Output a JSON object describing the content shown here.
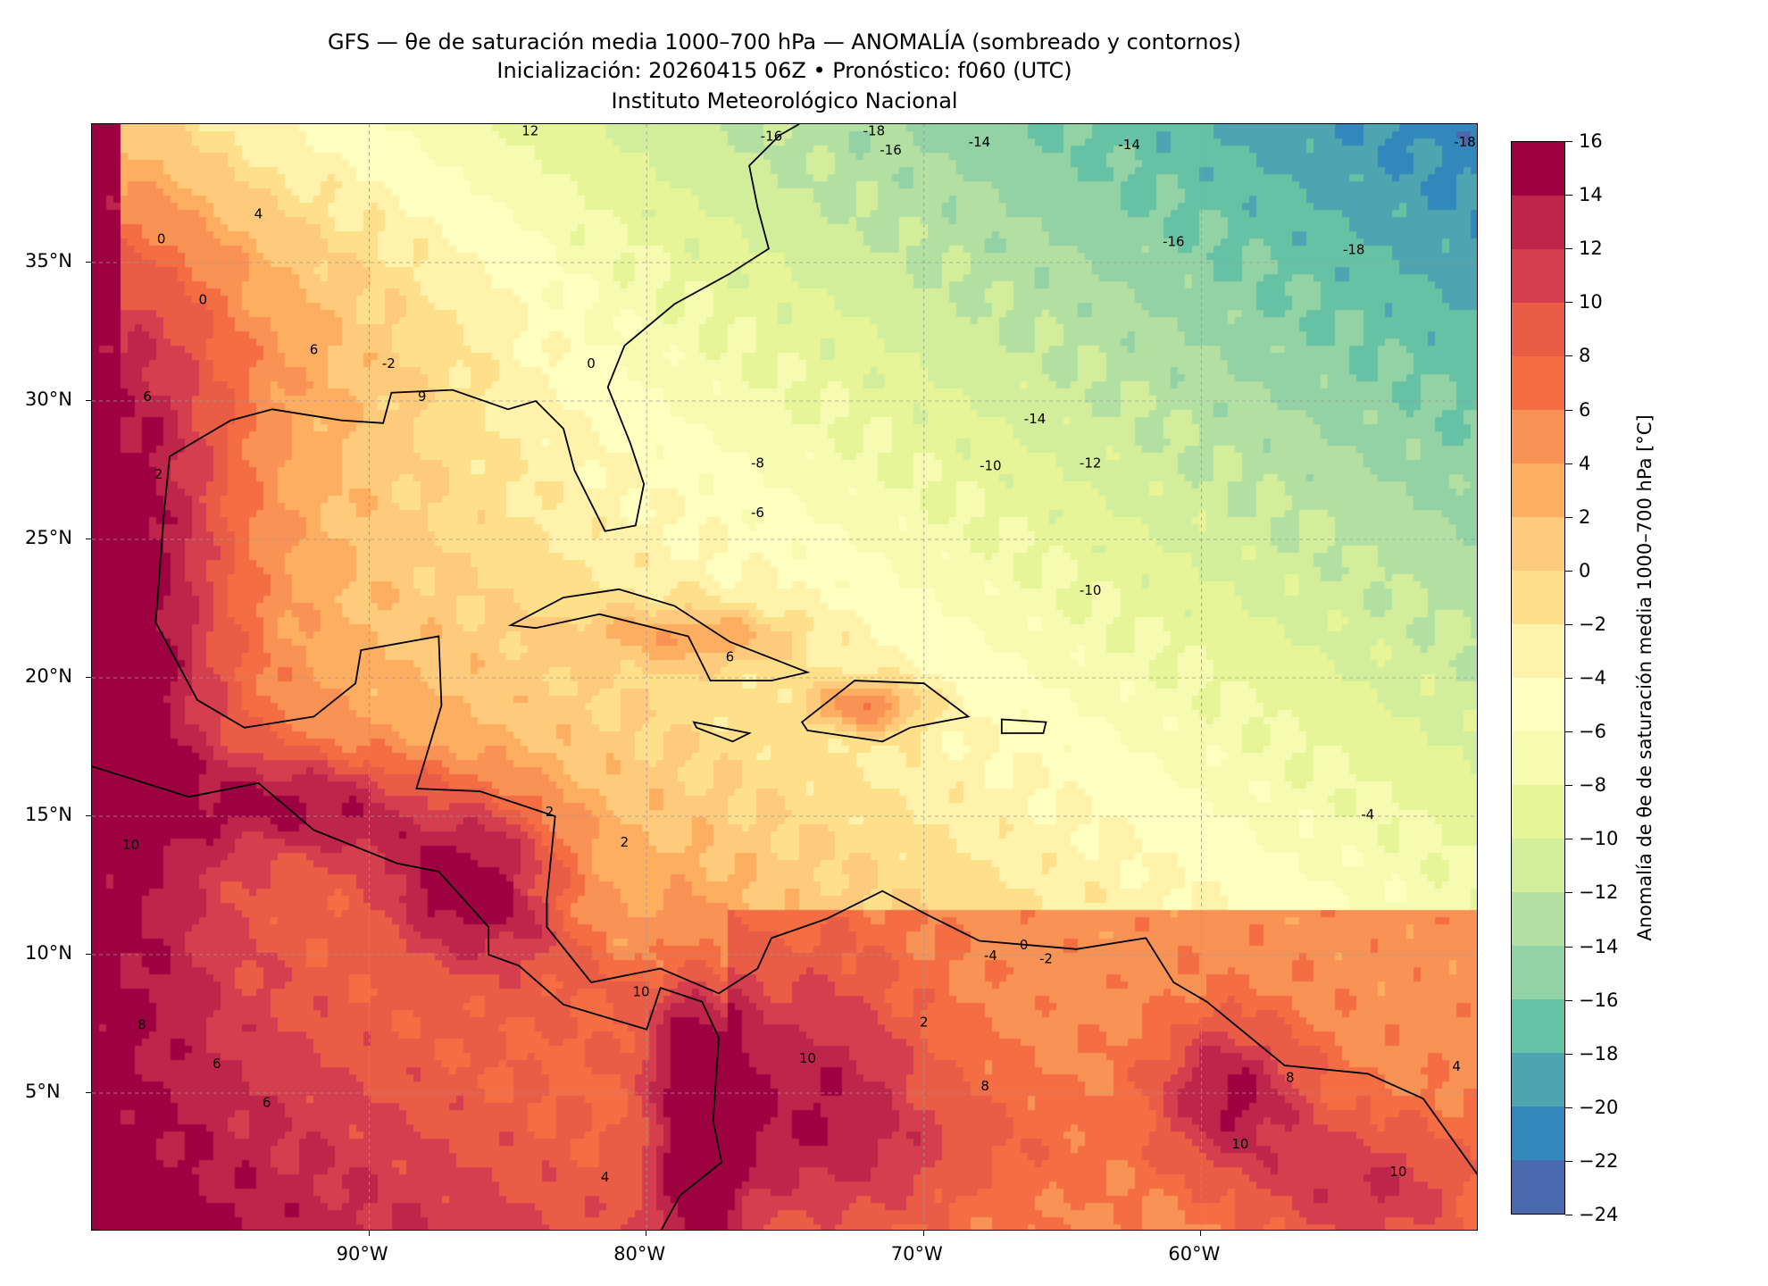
{
  "title": {
    "line1": "GFS — θe de saturación media 1000–700 hPa — ANOMALÍA (sombreado y contornos)",
    "line2": "Inicialización: 20260415 06Z   •   Pronóstico: f060 (UTC)",
    "line3": "Instituto Meteorológico Nacional"
  },
  "map": {
    "extent": {
      "lon": [
        -100,
        -50
      ],
      "lat": [
        0,
        40
      ]
    },
    "lat_ticks": [
      {
        "value": 35,
        "label": "35°N"
      },
      {
        "value": 30,
        "label": "30°N"
      },
      {
        "value": 25,
        "label": "25°N"
      },
      {
        "value": 20,
        "label": "20°N"
      },
      {
        "value": 15,
        "label": "15°N"
      },
      {
        "value": 10,
        "label": "10°N"
      },
      {
        "value": 5,
        "label": "5°N"
      }
    ],
    "lon_ticks": [
      {
        "value": -90,
        "label": "90°W"
      },
      {
        "value": -80,
        "label": "80°W"
      },
      {
        "value": -70,
        "label": "70°W"
      },
      {
        "value": -60,
        "label": "60°W"
      }
    ],
    "contour_labels": [
      {
        "lon": -84.2,
        "lat": 39.6,
        "text": "12"
      },
      {
        "lon": -75.5,
        "lat": 39.4,
        "text": "-16"
      },
      {
        "lon": -71.8,
        "lat": 39.6,
        "text": "-18"
      },
      {
        "lon": -71.2,
        "lat": 38.9,
        "text": "-16"
      },
      {
        "lon": -68.0,
        "lat": 39.2,
        "text": "-14"
      },
      {
        "lon": -62.6,
        "lat": 39.1,
        "text": "-14"
      },
      {
        "lon": -50.5,
        "lat": 39.2,
        "text": "-18"
      },
      {
        "lon": -61.0,
        "lat": 35.6,
        "text": "-16"
      },
      {
        "lon": -54.5,
        "lat": 35.3,
        "text": "-18"
      },
      {
        "lon": -66.0,
        "lat": 29.2,
        "text": "-14"
      },
      {
        "lon": -64.0,
        "lat": 27.6,
        "text": "-12"
      },
      {
        "lon": -67.6,
        "lat": 27.5,
        "text": "-10"
      },
      {
        "lon": -76.0,
        "lat": 27.6,
        "text": "-8"
      },
      {
        "lon": -76.0,
        "lat": 25.8,
        "text": "-6"
      },
      {
        "lon": -64.0,
        "lat": 23.0,
        "text": "-10"
      },
      {
        "lon": -54.0,
        "lat": 14.9,
        "text": "-4"
      },
      {
        "lon": -98.6,
        "lat": 13.8,
        "text": "10"
      },
      {
        "lon": -98.2,
        "lat": 7.3,
        "text": "8"
      },
      {
        "lon": -95.5,
        "lat": 5.9,
        "text": "6"
      },
      {
        "lon": -93.7,
        "lat": 4.5,
        "text": "6"
      },
      {
        "lon": -81.5,
        "lat": 1.8,
        "text": "4"
      },
      {
        "lon": -83.5,
        "lat": 15.0,
        "text": "2"
      },
      {
        "lon": -80.8,
        "lat": 13.9,
        "text": "2"
      },
      {
        "lon": -82.0,
        "lat": 31.2,
        "text": "0"
      },
      {
        "lon": -89.3,
        "lat": 31.2,
        "text": "-2"
      },
      {
        "lon": -88.1,
        "lat": 30.0,
        "text": "9"
      },
      {
        "lon": -96.0,
        "lat": 33.5,
        "text": "0"
      },
      {
        "lon": -97.5,
        "lat": 35.7,
        "text": "0"
      },
      {
        "lon": -94.0,
        "lat": 36.6,
        "text": "4"
      },
      {
        "lon": -92.0,
        "lat": 31.7,
        "text": "6"
      },
      {
        "lon": -98.0,
        "lat": 30.0,
        "text": "6"
      },
      {
        "lon": -97.6,
        "lat": 27.2,
        "text": "2"
      },
      {
        "lon": -66.4,
        "lat": 10.2,
        "text": "0"
      },
      {
        "lon": -65.6,
        "lat": 9.7,
        "text": "-2"
      },
      {
        "lon": -67.6,
        "lat": 9.8,
        "text": "-4"
      },
      {
        "lon": -67.8,
        "lat": 5.1,
        "text": "8"
      },
      {
        "lon": -70.0,
        "lat": 7.4,
        "text": "2"
      },
      {
        "lon": -74.2,
        "lat": 6.1,
        "text": "10"
      },
      {
        "lon": -58.6,
        "lat": 3.0,
        "text": "10"
      },
      {
        "lon": -56.8,
        "lat": 5.4,
        "text": "8"
      },
      {
        "lon": -52.9,
        "lat": 2.0,
        "text": "10"
      },
      {
        "lon": -50.8,
        "lat": 5.8,
        "text": "4"
      },
      {
        "lon": -77.0,
        "lat": 20.6,
        "text": "6"
      },
      {
        "lon": -80.2,
        "lat": 8.5,
        "text": "10"
      }
    ]
  },
  "colorbar": {
    "label": "Anomalía de θe de saturación media 1000–700 hPa [°C]",
    "ticks": [
      "16",
      "14",
      "12",
      "10",
      "8",
      "6",
      "4",
      "2",
      "0",
      "−2",
      "−4",
      "−6",
      "−8",
      "−10",
      "−12",
      "−14",
      "−16",
      "−18",
      "−20",
      "−22",
      "−24"
    ],
    "colors": [
      "#9e0142",
      "#be254a",
      "#d53e4f",
      "#e95d47",
      "#f46d43",
      "#f99355",
      "#fdae61",
      "#fdcb7b",
      "#fee08b",
      "#fff3ac",
      "#ffffbf",
      "#f6fbb2",
      "#e6f598",
      "#d3ee9b",
      "#b2e0a3",
      "#92d2a4",
      "#66c2a5",
      "#4ea4b0",
      "#3288bd",
      "#4a68ae",
      "#5e4fa2"
    ]
  }
}
